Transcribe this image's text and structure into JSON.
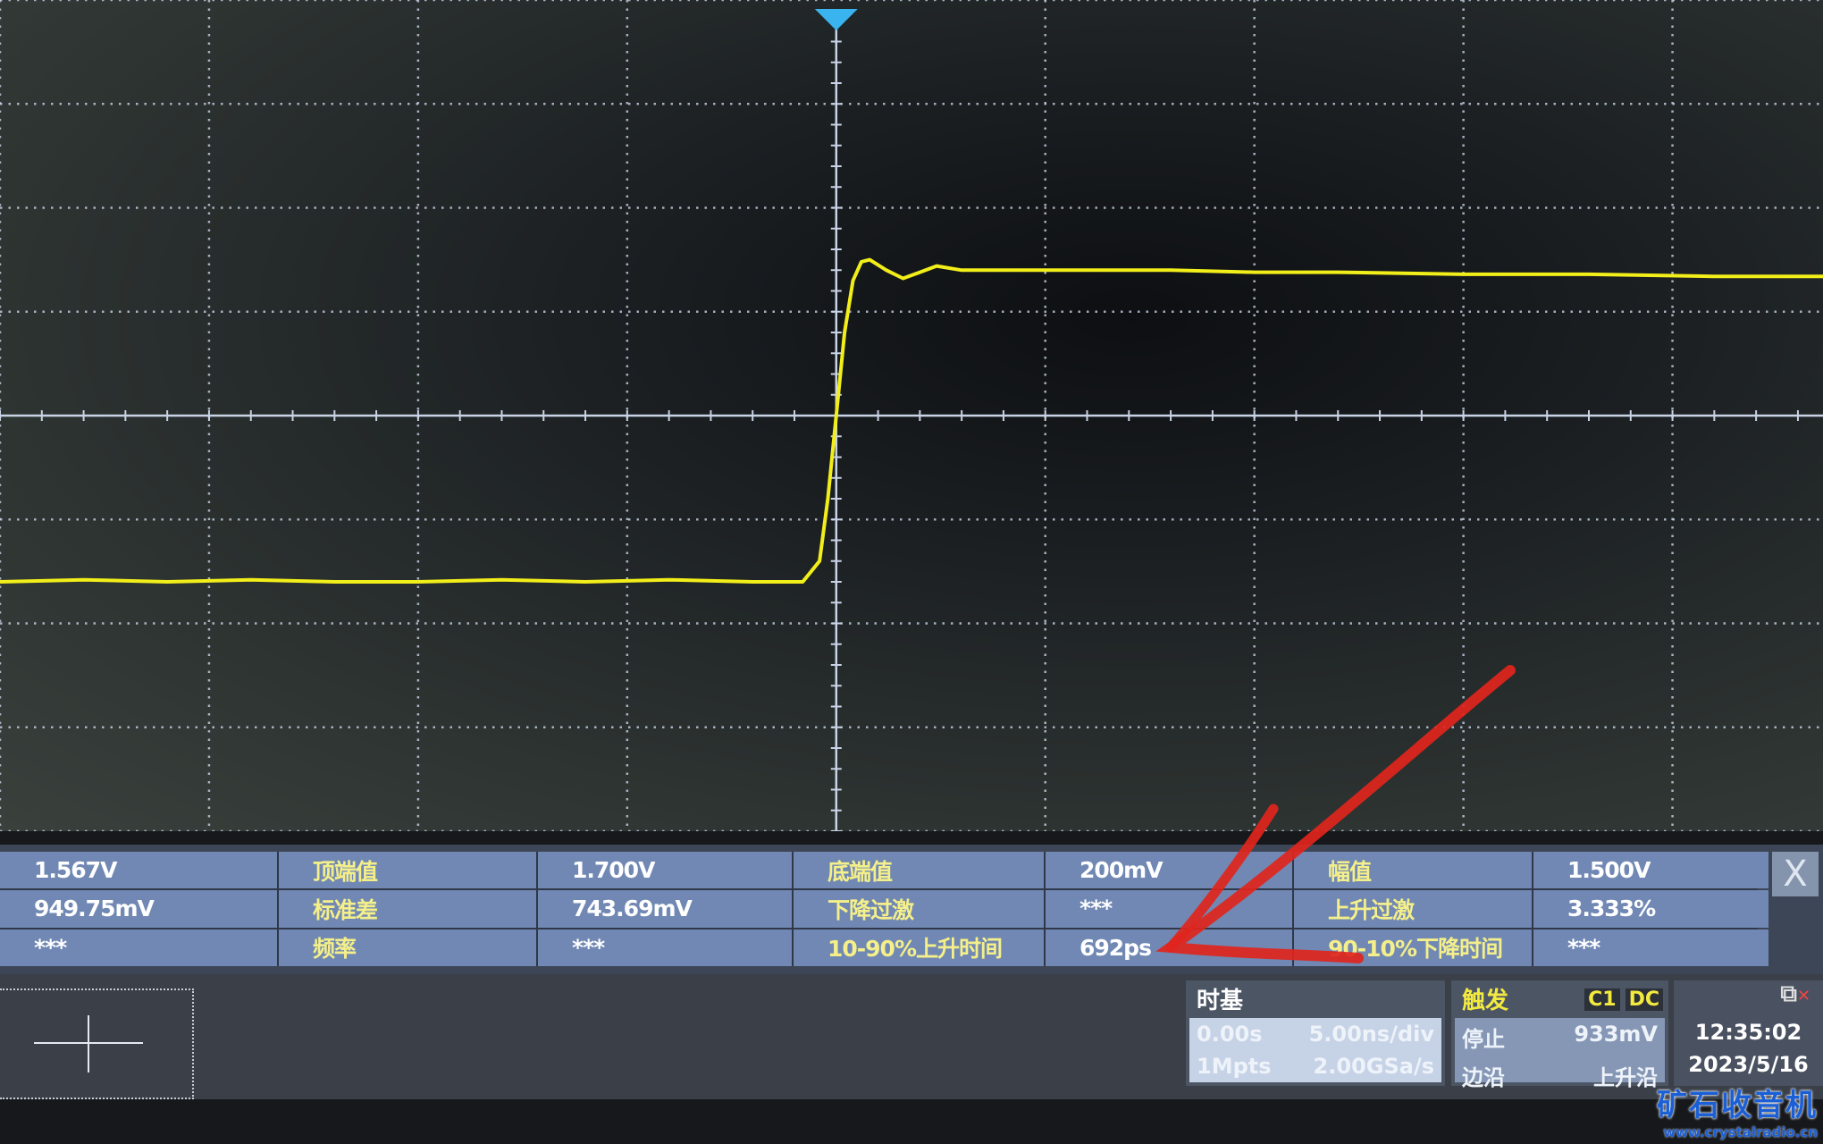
{
  "chart_data": {
    "type": "line",
    "title": "",
    "xlabel": "",
    "ylabel": "",
    "x_unit": "ns",
    "y_unit": "V",
    "timebase_per_div": "5.00ns/div",
    "volts_per_div_est": 0.5,
    "xlim": [
      -20,
      23.6
    ],
    "ylim": [
      -1.0,
      3.0
    ],
    "grid": true,
    "trigger_position_ns": 0,
    "series": [
      {
        "color": "#f2ee1a",
        "x": [
          -20,
          -18,
          -16,
          -14,
          -12,
          -10,
          -8,
          -6,
          -4,
          -2,
          -0.8,
          -0.4,
          -0.2,
          0,
          0.2,
          0.4,
          0.6,
          0.8,
          1.2,
          1.6,
          2.0,
          2.4,
          3,
          5,
          8,
          10,
          12,
          15,
          18,
          21,
          23.6
        ],
        "y": [
          0.2,
          0.21,
          0.2,
          0.21,
          0.2,
          0.2,
          0.21,
          0.2,
          0.21,
          0.2,
          0.2,
          0.3,
          0.6,
          1.0,
          1.4,
          1.65,
          1.74,
          1.75,
          1.7,
          1.66,
          1.69,
          1.72,
          1.7,
          1.7,
          1.7,
          1.69,
          1.69,
          1.68,
          1.68,
          1.67,
          1.67
        ]
      }
    ]
  },
  "measurements": [
    [
      {
        "v": "1.567V"
      },
      {
        "l": "顶端值"
      },
      {
        "v": "1.700V"
      },
      {
        "l": "底端值"
      },
      {
        "v": "200mV"
      },
      {
        "l": "幅值"
      },
      {
        "v": "1.500V"
      }
    ],
    [
      {
        "v": "949.75mV"
      },
      {
        "l": "标准差"
      },
      {
        "v": "743.69mV"
      },
      {
        "l": "下降过激"
      },
      {
        "v": "***"
      },
      {
        "l": "上升过激"
      },
      {
        "v": "3.333%"
      }
    ],
    [
      {
        "v": "***"
      },
      {
        "l": "频率"
      },
      {
        "v": "***"
      },
      {
        "l": "10-90%上升时间"
      },
      {
        "v": "692ps"
      },
      {
        "l": "90-10%下降时间"
      },
      {
        "v": "***"
      }
    ]
  ],
  "close_label": "X",
  "timebase": {
    "title": "时基",
    "delay": "0.00s",
    "scale": "5.00ns/div",
    "depth": "1Mpts",
    "rate": "2.00GSa/s"
  },
  "trigger": {
    "title": "触发",
    "source": "C1",
    "coupling": "DC",
    "state": "停止",
    "level": "933mV",
    "type": "边沿",
    "slope": "上升沿"
  },
  "clock": {
    "time": "12:35:02",
    "date": "2023/5/16"
  },
  "watermark": {
    "title": "矿石收音机",
    "url": "www.crystalradio.cn"
  },
  "colors": {
    "trace": "#f2ee1a",
    "grid": "#c9d3e6",
    "trigger_marker": "#39b4ef",
    "panel": "#7088b3",
    "label": "#f4ef8a",
    "annotation": "#e0251c"
  }
}
